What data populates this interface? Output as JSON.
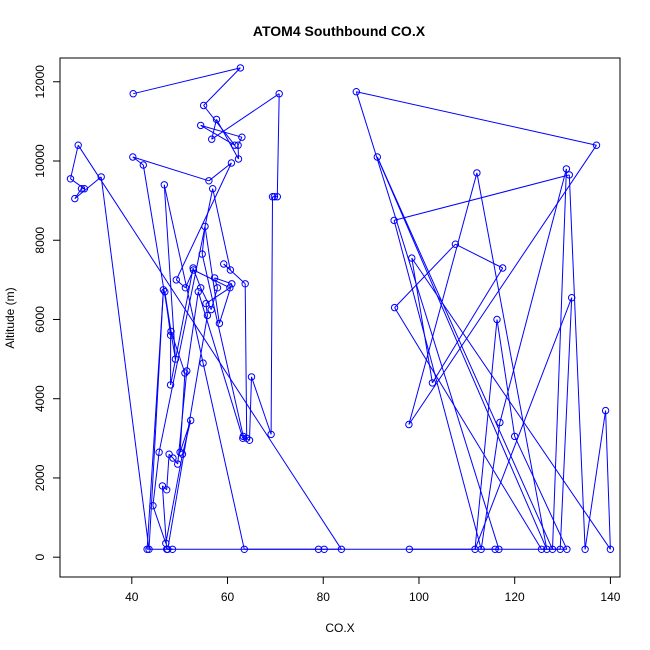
{
  "chart_data": {
    "type": "line",
    "title": "ATOM4 Southbound CO.X",
    "xlabel": "CO.X",
    "ylabel": "Altitude (m)",
    "xlim": [
      25,
      142
    ],
    "ylim": [
      -500,
      12600
    ],
    "xticks": [
      40,
      60,
      80,
      100,
      120,
      140
    ],
    "yticks": [
      0,
      2000,
      4000,
      6000,
      8000,
      10000,
      12000
    ],
    "grid": false,
    "markers": "open-circle",
    "color": "#0000ff",
    "x": [
      40.3,
      62.7,
      55.0,
      61.5,
      54.4,
      63.0,
      62.2,
      62.3,
      57.7,
      56.7,
      70.8,
      70.4,
      69.8,
      69.4,
      69.1,
      65.0,
      64.6,
      63.3,
      54.7,
      55.3,
      58.3,
      60.9,
      57.3,
      57.9,
      56.6,
      54.4,
      52.8,
      48.1,
      48.1,
      46.9,
      48.2,
      51.1,
      50.1,
      52.3,
      50.6,
      47.1,
      44.4,
      45.7,
      56.9,
      60.6,
      59.2,
      63.7,
      64.0,
      63.2,
      53.9,
      51.5,
      49.6,
      48.6,
      47.8,
      47.3,
      46.4,
      47.3,
      48.5,
      47.5,
      55.8,
      55.5,
      60.5,
      52.9,
      51.2,
      49.3,
      60.8,
      56.1,
      40.2,
      42.4,
      49.1,
      46.8,
      54.9,
      63.5,
      83.8,
      28.8,
      27.2,
      30.1,
      29.5,
      28.1,
      33.6,
      43.6,
      46.6,
      43.2,
      79.0,
      80.2,
      115.9,
      116.7,
      86.9,
      137.1,
      97.9,
      112.1,
      126.7,
      91.3,
      127.9,
      130.8,
      116.9,
      113.0,
      94.8,
      131.4,
      134.7,
      139.0,
      140.0,
      98.5,
      102.8,
      117.5,
      107.6,
      94.9,
      125.6,
      130.9,
      120.0,
      116.3,
      111.7,
      131.9,
      129.5,
      98.0
    ],
    "y": [
      11700,
      12350,
      11400,
      10400,
      10900,
      10600,
      10400,
      10050,
      11050,
      10550,
      11700,
      9100,
      9100,
      9100,
      3100,
      4550,
      2950,
      3050,
      7650,
      8350,
      5900,
      6900,
      7050,
      6800,
      6250,
      6800,
      7300,
      4350,
      5600,
      6700,
      5700,
      4650,
      2650,
      3450,
      2600,
      350,
      1300,
      2650,
      9300,
      7250,
      7400,
      6900,
      3000,
      3000,
      6700,
      4700,
      2350,
      2500,
      2600,
      1700,
      1800,
      200,
      200,
      200,
      6100,
      6400,
      6800,
      7250,
      6800,
      7000,
      9950,
      9500,
      10100,
      9900,
      5000,
      9400,
      4900,
      200,
      200,
      10400,
      9550,
      9300,
      9300,
      9050,
      9600,
      200,
      6750,
      200,
      200,
      200,
      200,
      200,
      11750,
      10400,
      3350,
      9700,
      200,
      10100,
      200,
      9800,
      3400,
      200,
      8500,
      9650,
      200,
      3700,
      200,
      7550,
      4400,
      7300,
      7900,
      6300,
      200,
      200,
      3050,
      6000,
      200,
      6550,
      200,
      200
    ]
  }
}
